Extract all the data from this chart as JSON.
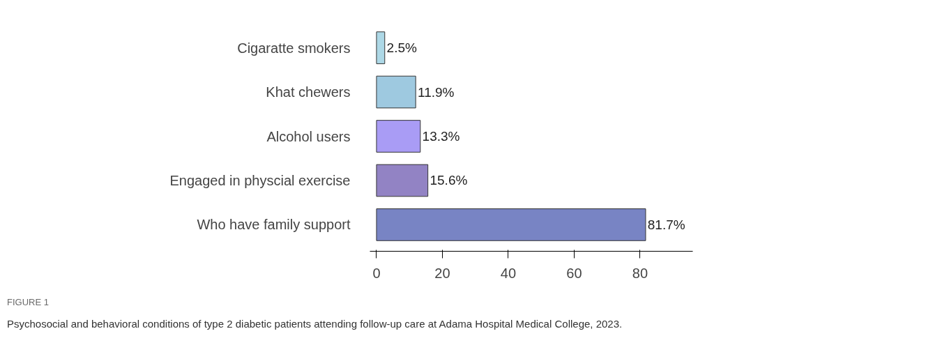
{
  "chart_data": {
    "type": "bar",
    "orientation": "horizontal",
    "title": "FIGURE 1",
    "annotations": [
      "Psychosocial and behavioral conditions of type 2 diabetic patients attending follow-up care at Adama Hospital Medical College, 2023."
    ],
    "categories": [
      "Cigaratte smokers",
      "Khat chewers",
      "Alcohol users",
      "Engaged in physcial exercise",
      "Who have family support"
    ],
    "values": [
      2.5,
      11.9,
      13.3,
      15.6,
      81.7
    ],
    "value_labels": [
      "2.5%",
      "11.9%",
      "13.3%",
      "15.6%",
      "81.7%"
    ],
    "colors": [
      "#add8e6",
      "#9ec9e0",
      "#a99cf5",
      "#9283c4",
      "#7884c4"
    ],
    "xlim": [
      -2,
      96
    ],
    "xticks": [
      0,
      20,
      40,
      60,
      80
    ],
    "grid": false
  }
}
